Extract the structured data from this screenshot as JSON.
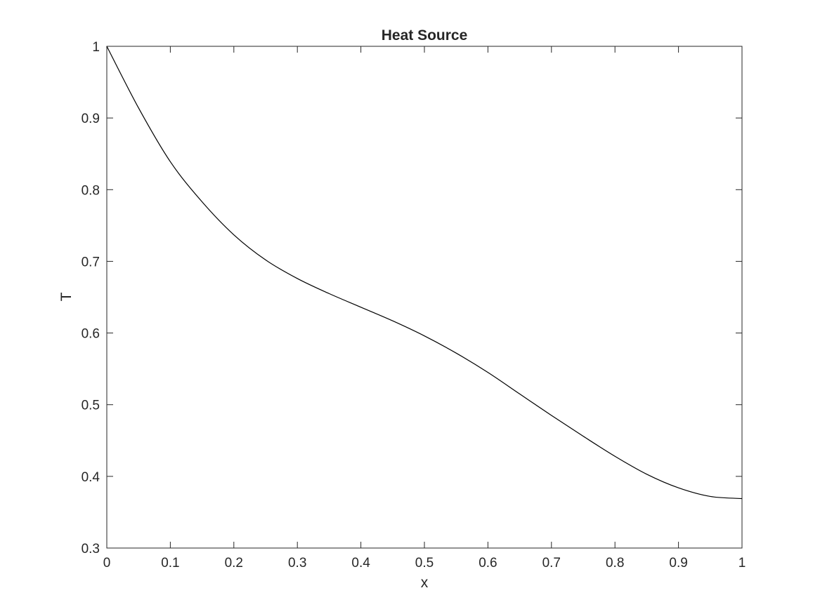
{
  "chart_data": {
    "type": "line",
    "title": "Heat Source",
    "xlabel": "x",
    "ylabel": "T",
    "xlim": [
      0,
      1
    ],
    "ylim": [
      0.3,
      1
    ],
    "grid": false,
    "legend": null,
    "box": true,
    "x_ticks": [
      0,
      0.1,
      0.2,
      0.3,
      0.4,
      0.5,
      0.6,
      0.7,
      0.8,
      0.9,
      1
    ],
    "x_tick_labels": [
      "0",
      "0.1",
      "0.2",
      "0.3",
      "0.4",
      "0.5",
      "0.6",
      "0.7",
      "0.8",
      "0.9",
      "1"
    ],
    "y_ticks": [
      0.3,
      0.4,
      0.5,
      0.6,
      0.7,
      0.8,
      0.9,
      1
    ],
    "y_tick_labels": [
      "0.3",
      "0.4",
      "0.5",
      "0.6",
      "0.7",
      "0.8",
      "0.9",
      "1"
    ],
    "series": [
      {
        "color": "#000000",
        "x": [
          0,
          0.05,
          0.1,
          0.15,
          0.2,
          0.25,
          0.3,
          0.35,
          0.4,
          0.45,
          0.5,
          0.55,
          0.6,
          0.65,
          0.7,
          0.75,
          0.8,
          0.85,
          0.9,
          0.95,
          1
        ],
        "y": [
          1.0,
          0.914,
          0.839,
          0.783,
          0.737,
          0.702,
          0.676,
          0.655,
          0.636,
          0.617,
          0.596,
          0.572,
          0.545,
          0.515,
          0.485,
          0.456,
          0.428,
          0.403,
          0.384,
          0.372,
          0.369
        ]
      }
    ]
  },
  "colors": {
    "axes": "#262626",
    "line": "#000000",
    "background": "#ffffff"
  }
}
